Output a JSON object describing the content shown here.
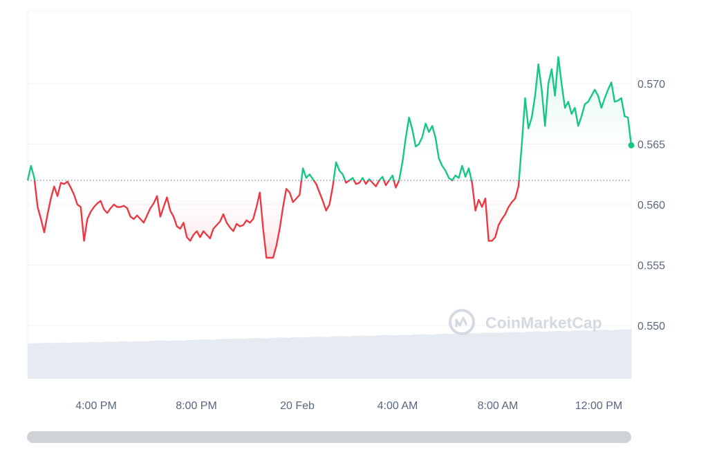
{
  "watermark": {
    "text": "CoinMarketCap",
    "icon": "coinmarketcap-logo-icon"
  },
  "colors": {
    "up": "#16c784",
    "down": "#ea3943",
    "up_fill_top": "rgba(22,199,132,0.18)",
    "down_fill_top": "rgba(234,57,67,0.18)",
    "grid": "#eff2f5",
    "baseline": "#808a9d",
    "volume": "#e6ebf1",
    "scrollbar": "#cfd2d6"
  },
  "chart_data": {
    "type": "line",
    "baseline": 0.562,
    "ylim": [
      0.5456,
      0.576
    ],
    "y_ticks": [
      0.55,
      0.555,
      0.56,
      0.565,
      0.57
    ],
    "y_tick_labels": [
      "0.550",
      "0.555",
      "0.560",
      "0.565",
      "0.570"
    ],
    "x_tick_labels": [
      "4:00 PM",
      "8:00 PM",
      "20 Feb",
      "4:00 AM",
      "8:00 AM",
      "12:00 PM"
    ],
    "grid": true,
    "legend": "none",
    "series": [
      {
        "values": [
          0.562,
          0.5632,
          0.5622,
          0.5598,
          0.5588,
          0.5577,
          0.5592,
          0.5605,
          0.5615,
          0.5607,
          0.5618,
          0.5617,
          0.5619,
          0.5614,
          0.5608,
          0.56,
          0.5598,
          0.557,
          0.5588,
          0.5594,
          0.5598,
          0.5601,
          0.5603,
          0.5596,
          0.5593,
          0.5597,
          0.56,
          0.5598,
          0.5598,
          0.5599,
          0.5597,
          0.559,
          0.5588,
          0.5591,
          0.5588,
          0.5585,
          0.5591,
          0.5597,
          0.5601,
          0.5607,
          0.559,
          0.5598,
          0.5606,
          0.5595,
          0.559,
          0.5582,
          0.558,
          0.5585,
          0.5573,
          0.557,
          0.5575,
          0.5578,
          0.5573,
          0.5578,
          0.5575,
          0.5572,
          0.558,
          0.5583,
          0.5586,
          0.5592,
          0.5585,
          0.5581,
          0.5578,
          0.5584,
          0.5582,
          0.5583,
          0.5587,
          0.5585,
          0.5588,
          0.5598,
          0.561,
          0.558,
          0.5556,
          0.5556,
          0.5556,
          0.5566,
          0.558,
          0.5598,
          0.5613,
          0.561,
          0.5602,
          0.5605,
          0.5608,
          0.563,
          0.5622,
          0.5625,
          0.5621,
          0.5617,
          0.561,
          0.5603,
          0.5595,
          0.56,
          0.5615,
          0.5635,
          0.5628,
          0.5625,
          0.5618,
          0.562,
          0.5622,
          0.5617,
          0.5618,
          0.5622,
          0.5617,
          0.5621,
          0.5618,
          0.5615,
          0.562,
          0.5623,
          0.5616,
          0.562,
          0.5624,
          0.5614,
          0.562,
          0.5635,
          0.5655,
          0.5672,
          0.5662,
          0.5648,
          0.565,
          0.5656,
          0.5667,
          0.566,
          0.5665,
          0.5655,
          0.5638,
          0.5632,
          0.5628,
          0.5622,
          0.562,
          0.5624,
          0.5622,
          0.5632,
          0.5623,
          0.563,
          0.5618,
          0.5595,
          0.5604,
          0.5598,
          0.5605,
          0.557,
          0.557,
          0.5573,
          0.5583,
          0.5588,
          0.5592,
          0.5598,
          0.5602,
          0.5605,
          0.5615,
          0.565,
          0.5688,
          0.5663,
          0.5672,
          0.569,
          0.5716,
          0.5695,
          0.5665,
          0.57,
          0.5712,
          0.569,
          0.5722,
          0.57,
          0.568,
          0.5685,
          0.5675,
          0.568,
          0.5665,
          0.5673,
          0.5683,
          0.5685,
          0.569,
          0.5695,
          0.569,
          0.568,
          0.5688,
          0.5695,
          0.5701,
          0.5685,
          0.5686,
          0.5688,
          0.5673,
          0.5672,
          0.5649
        ]
      }
    ],
    "volume_rel": [
      0.28,
      0.29,
      0.3,
      0.29,
      0.31,
      0.3,
      0.32,
      0.31,
      0.33,
      0.32,
      0.34,
      0.33,
      0.35,
      0.34,
      0.36,
      0.35,
      0.37,
      0.38,
      0.37,
      0.39,
      0.38,
      0.4,
      0.41,
      0.42,
      0.41,
      0.43,
      0.44,
      0.45,
      0.44,
      0.46,
      0.47,
      0.46,
      0.48,
      0.49,
      0.48,
      0.5,
      0.49,
      0.51,
      0.52,
      0.51,
      0.53,
      0.54,
      0.53,
      0.55,
      0.56,
      0.55,
      0.57,
      0.58,
      0.57,
      0.59,
      0.58,
      0.6,
      0.61,
      0.6,
      0.62,
      0.63,
      0.62,
      0.64,
      0.65,
      0.64,
      0.66,
      0.67,
      0.66,
      0.68,
      0.69,
      0.68,
      0.7,
      0.71,
      0.7,
      0.72,
      0.73,
      0.72,
      0.74,
      0.75,
      0.74,
      0.76,
      0.77,
      0.76,
      0.78,
      0.79
    ]
  }
}
